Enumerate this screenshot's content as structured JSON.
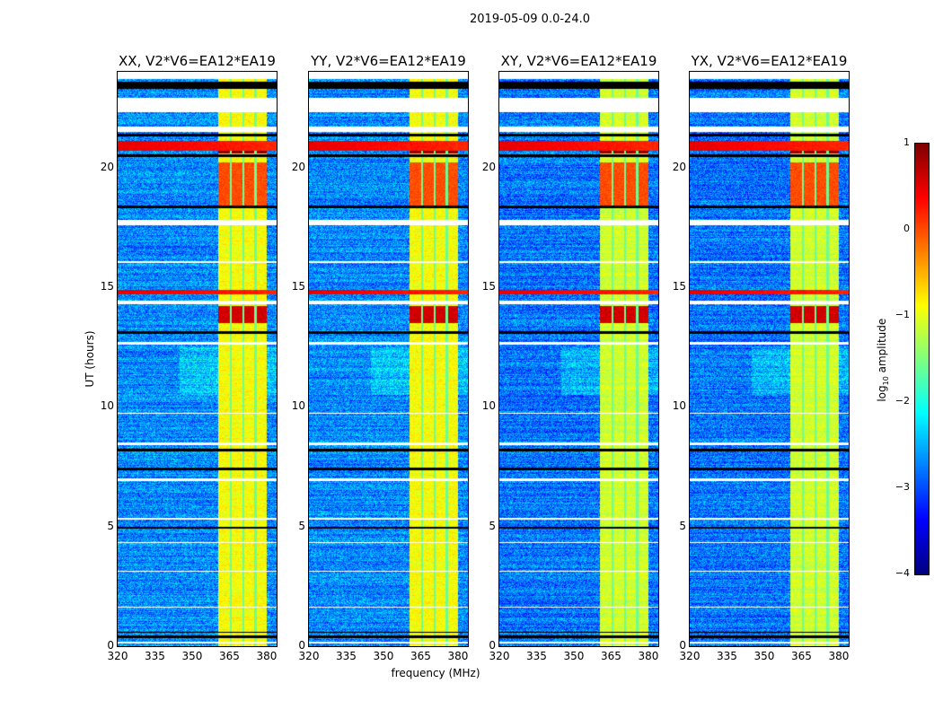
{
  "chart_data": {
    "type": "heatmap",
    "title": "2019-05-09 0.0-24.0",
    "xlabel": "frequency (MHz)",
    "ylabel": "UT (hours)",
    "colorbar_label": "log10 amplitude",
    "colorbar_label_main": "log",
    "colorbar_label_sub": "10",
    "colorbar_label_rest": " amplitude",
    "colormap": "jet",
    "clim": [
      -4,
      1
    ],
    "colorbar_ticks": [
      "1",
      "0",
      "−1",
      "−2",
      "−3",
      "−4"
    ],
    "colorbar_tick_values": [
      1,
      0,
      -1,
      -2,
      -3,
      -4
    ],
    "xlim": [
      320,
      384
    ],
    "ylim": [
      0,
      24
    ],
    "xticks": [
      320,
      335,
      350,
      365,
      380
    ],
    "yticks": [
      0,
      5,
      10,
      15,
      20
    ],
    "panels": [
      {
        "title": "XX, V2*V6=EA12*EA19",
        "band_level": -0.9,
        "bg_level": -2.7
      },
      {
        "title": "YY, V2*V6=EA12*EA19",
        "band_level": -0.9,
        "bg_level": -2.7
      },
      {
        "title": "XY, V2*V6=EA12*EA19",
        "band_level": -1.1,
        "bg_level": -2.8
      },
      {
        "title": "YX, V2*V6=EA12*EA19",
        "band_level": -1.1,
        "bg_level": -2.8
      }
    ],
    "rfi_band_mhz": [
      360.5,
      380
    ],
    "rfi_channel_edges_mhz": [
      365.5,
      370.5,
      375.5
    ],
    "strong_band_rows_ut": [
      [
        13.5,
        14.2,
        0.6
      ],
      [
        18.3,
        20.2,
        0.0
      ],
      [
        20.6,
        21.0,
        0.9
      ]
    ],
    "red_rows_ut": [
      [
        14.7,
        14.9
      ],
      [
        20.7,
        21.1
      ]
    ],
    "flagged_rows_ut": [
      [
        22.3,
        22.9
      ],
      [
        21.5,
        21.7
      ],
      [
        17.6,
        17.8
      ],
      [
        16.0,
        16.1
      ],
      [
        14.3,
        14.45
      ],
      [
        12.6,
        12.7
      ],
      [
        9.7,
        9.75
      ],
      [
        8.4,
        8.5
      ],
      [
        6.9,
        7.0
      ],
      [
        5.3,
        5.35
      ],
      [
        4.3,
        4.35
      ],
      [
        3.1,
        3.15
      ],
      [
        1.6,
        1.65
      ],
      [
        0.1,
        0.2
      ],
      [
        23.7,
        24.0
      ]
    ],
    "black_rows_ut": [
      [
        0.35,
        0.45
      ],
      [
        0.55,
        0.6
      ],
      [
        4.9,
        5.0
      ],
      [
        7.35,
        7.45
      ],
      [
        8.15,
        8.25
      ],
      [
        13.05,
        13.15
      ],
      [
        18.3,
        18.4
      ],
      [
        20.45,
        20.55
      ],
      [
        21.3,
        21.4
      ],
      [
        23.3,
        23.6
      ]
    ]
  }
}
